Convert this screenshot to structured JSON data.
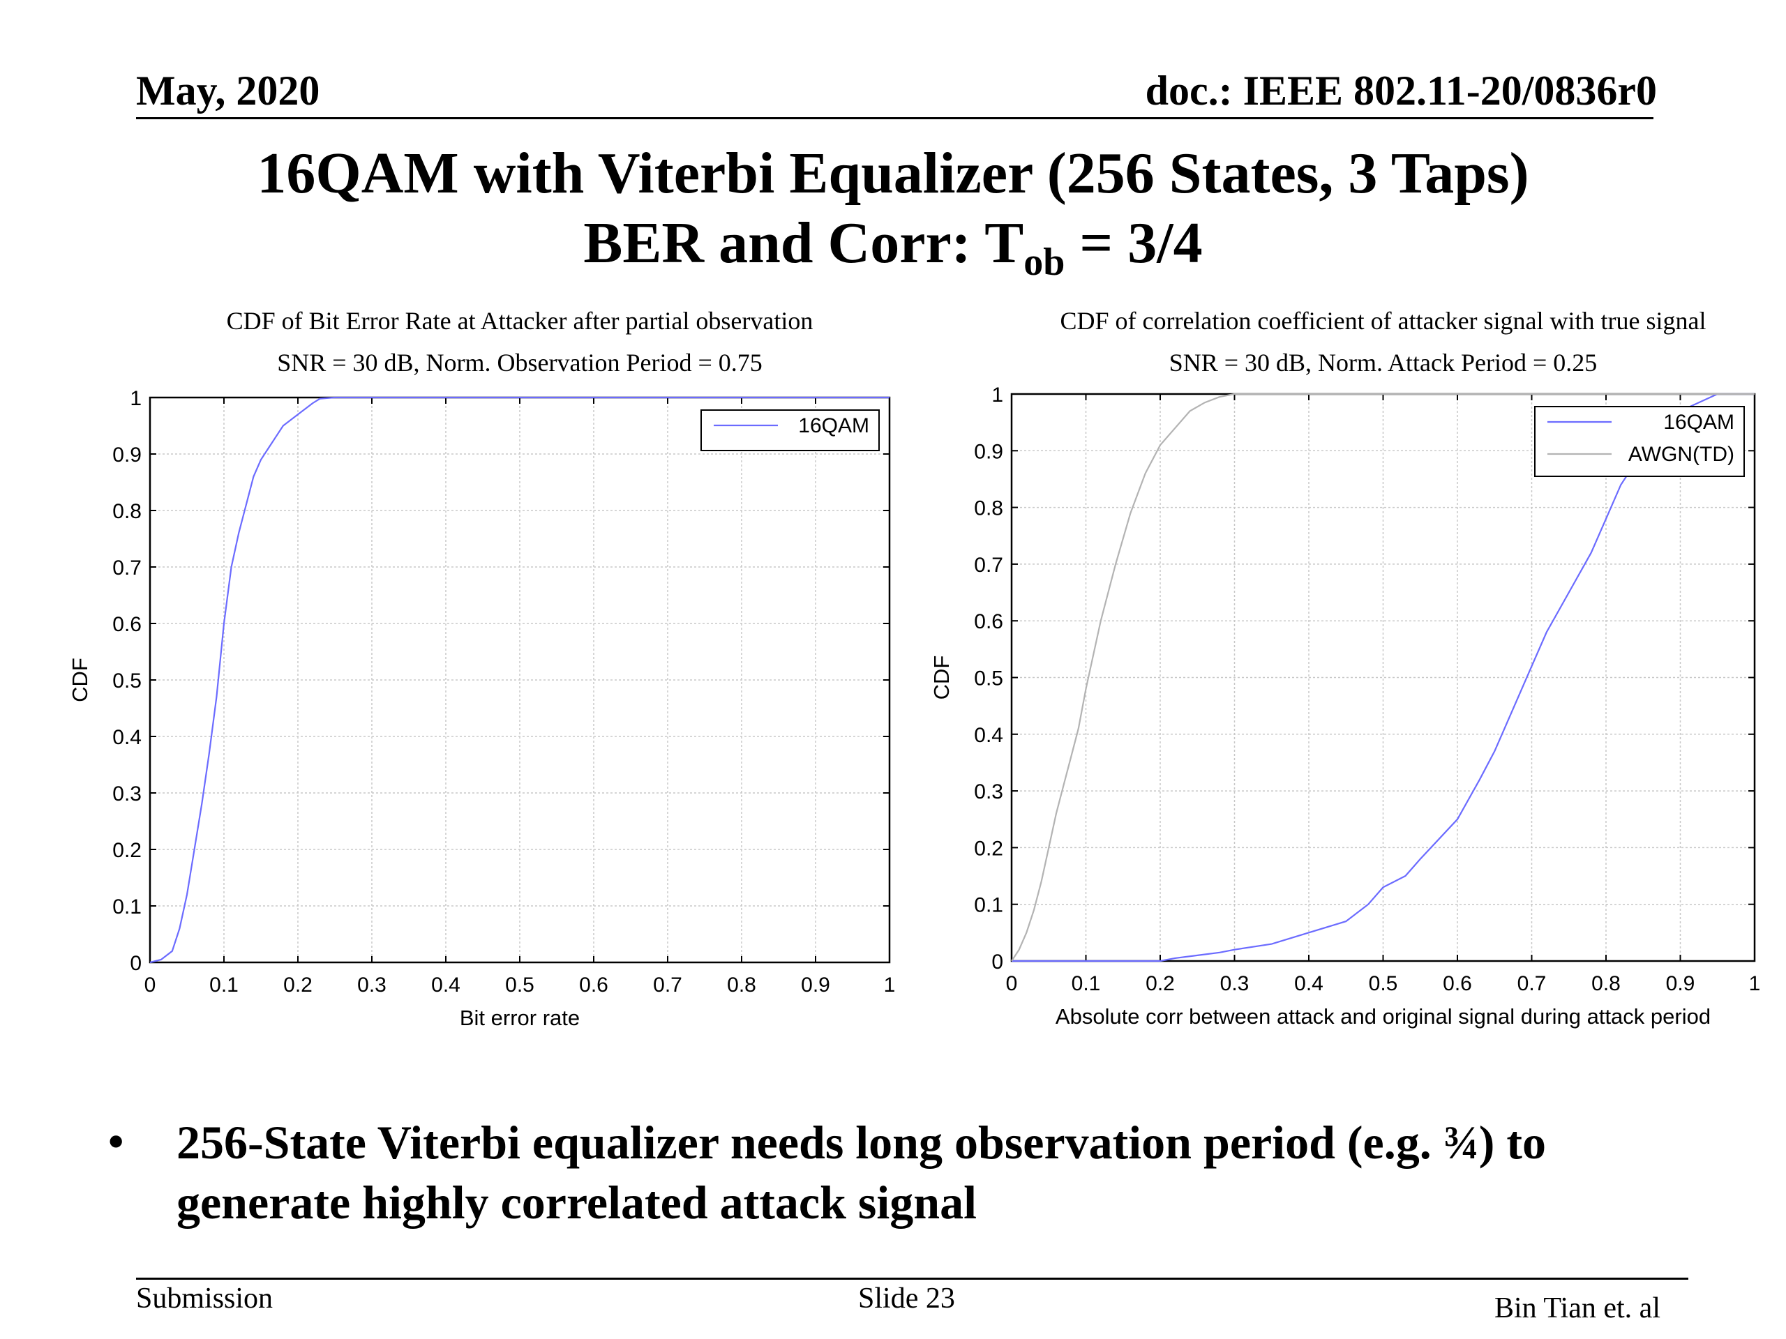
{
  "header": {
    "date": "May, 2020",
    "doc": "doc.: IEEE 802.11-20/0836r0"
  },
  "title": {
    "line1": "16QAM with Viterbi Equalizer (256 States, 3 Taps)",
    "line2_prefix": "BER and Corr: T",
    "line2_sub": "ob",
    "line2_suffix": " = 3/4"
  },
  "bullet": {
    "text": "256-State Viterbi equalizer needs long observation period (e.g. ¾) to generate highly correlated attack signal"
  },
  "footer": {
    "left": "Submission",
    "center": "Slide 23",
    "right": "Bin Tian et. al"
  },
  "colors": {
    "series_16qam": "#6b6bff",
    "series_awgn": "#b3b3b3",
    "grid": "#c8c8c8"
  },
  "chart_data": [
    {
      "type": "line",
      "title": "CDF of Bit Error Rate at Attacker after partial observation",
      "subtitle": "SNR = 30 dB, Norm. Observation Period = 0.75",
      "xlabel": "Bit error rate",
      "ylabel": "CDF",
      "xlim": [
        0,
        1
      ],
      "ylim": [
        0,
        1
      ],
      "xticks": [
        "0",
        "0.1",
        "0.2",
        "0.3",
        "0.4",
        "0.5",
        "0.6",
        "0.7",
        "0.8",
        "0.9",
        "1"
      ],
      "yticks": [
        "0",
        "0.1",
        "0.2",
        "0.3",
        "0.4",
        "0.5",
        "0.6",
        "0.7",
        "0.8",
        "0.9",
        "1"
      ],
      "grid": true,
      "legend": "top-right",
      "series": [
        {
          "name": "16QAM",
          "x": [
            0,
            0.015,
            0.03,
            0.04,
            0.05,
            0.06,
            0.07,
            0.08,
            0.09,
            0.1,
            0.11,
            0.12,
            0.13,
            0.14,
            0.15,
            0.16,
            0.17,
            0.18,
            0.2,
            0.22,
            0.23,
            0.25,
            0.3,
            0.5,
            0.7,
            1.0
          ],
          "y": [
            0,
            0.005,
            0.02,
            0.06,
            0.12,
            0.2,
            0.28,
            0.37,
            0.47,
            0.6,
            0.7,
            0.76,
            0.81,
            0.86,
            0.89,
            0.91,
            0.93,
            0.95,
            0.97,
            0.99,
            0.998,
            1,
            1,
            1,
            1,
            1
          ]
        }
      ]
    },
    {
      "type": "line",
      "title": "CDF of correlation coefficient of attacker signal with true signal",
      "subtitle": "SNR = 30 dB, Norm. Attack Period = 0.25",
      "xlabel": "Absolute corr between attack and original signal during attack period",
      "ylabel": "CDF",
      "xlim": [
        0,
        1
      ],
      "ylim": [
        0,
        1
      ],
      "xticks": [
        "0",
        "0.1",
        "0.2",
        "0.3",
        "0.4",
        "0.5",
        "0.6",
        "0.7",
        "0.8",
        "0.9",
        "1"
      ],
      "yticks": [
        "0",
        "0.1",
        "0.2",
        "0.3",
        "0.4",
        "0.5",
        "0.6",
        "0.7",
        "0.8",
        "0.9",
        "1"
      ],
      "grid": true,
      "legend": "top-right",
      "series": [
        {
          "name": "16QAM",
          "x": [
            0,
            0.1,
            0.2,
            0.22,
            0.25,
            0.28,
            0.3,
            0.35,
            0.4,
            0.45,
            0.48,
            0.5,
            0.53,
            0.55,
            0.6,
            0.63,
            0.65,
            0.7,
            0.72,
            0.75,
            0.78,
            0.8,
            0.82,
            0.85,
            0.9,
            0.95,
            1.0
          ],
          "y": [
            0,
            0,
            0,
            0.005,
            0.01,
            0.015,
            0.02,
            0.03,
            0.05,
            0.07,
            0.1,
            0.13,
            0.15,
            0.18,
            0.25,
            0.32,
            0.37,
            0.52,
            0.58,
            0.65,
            0.72,
            0.78,
            0.84,
            0.9,
            0.97,
            1,
            1
          ]
        },
        {
          "name": "AWGN(TD)",
          "x": [
            0,
            0.01,
            0.02,
            0.03,
            0.04,
            0.05,
            0.06,
            0.07,
            0.08,
            0.09,
            0.1,
            0.12,
            0.14,
            0.16,
            0.18,
            0.2,
            0.22,
            0.24,
            0.26,
            0.28,
            0.3,
            0.35,
            0.4,
            1.0
          ],
          "y": [
            0,
            0.02,
            0.05,
            0.09,
            0.14,
            0.2,
            0.26,
            0.31,
            0.36,
            0.41,
            0.48,
            0.6,
            0.7,
            0.79,
            0.86,
            0.91,
            0.94,
            0.97,
            0.985,
            0.995,
            1,
            1,
            1,
            1
          ]
        }
      ]
    }
  ]
}
